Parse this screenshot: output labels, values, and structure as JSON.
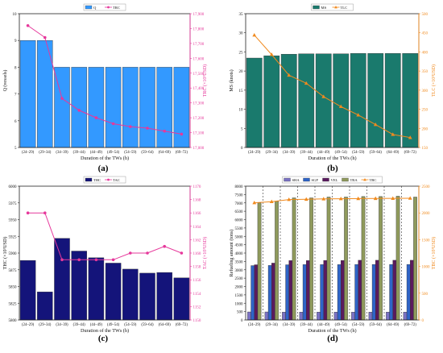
{
  "figure": {
    "x_categories": [
      "(24–29)",
      "(29–34)",
      "(34–39)",
      "(39–44)",
      "(44–49)",
      "(49–54)",
      "(54–59)",
      "(59–64)",
      "(64–69)",
      "(69–72)"
    ],
    "xlabel": "Duration of the TWs (h)"
  },
  "chart_data": [
    {
      "panel": "a",
      "panel_label": "(a)",
      "type": "bar+line",
      "categories": [
        "(24–29)",
        "(29–34)",
        "(34–39)",
        "(39–44)",
        "(44–49)",
        "(49–54)",
        "(54–59)",
        "(59–64)",
        "(64–69)",
        "(69–72)"
      ],
      "xlabel": "Duration of the TWs (h)",
      "ylabel_left": "Q (vessels)",
      "ylabel_right": "TRC (×10³USD)",
      "ylim_left": [
        5,
        10
      ],
      "ylim_right": [
        17000,
        17900
      ],
      "yticks_left": [
        "5",
        "6",
        "7",
        "8",
        "9",
        "10"
      ],
      "yticks_right": [
        "17,000",
        "17,100",
        "17,200",
        "17,300",
        "17,400",
        "17,500",
        "17,600",
        "17,700",
        "17,800",
        "17,900"
      ],
      "series": [
        {
          "name": "Q",
          "kind": "bar",
          "axis": "left",
          "color": "#3399ff",
          "values": [
            9,
            9,
            8,
            8,
            8,
            8,
            8,
            8,
            8,
            8
          ]
        },
        {
          "name": "TRC",
          "kind": "line",
          "axis": "right",
          "color": "#e6389b",
          "marker": "circle",
          "values": [
            17820,
            17740,
            17330,
            17250,
            17200,
            17160,
            17140,
            17130,
            17110,
            17090
          ]
        }
      ],
      "legend_position": "top"
    },
    {
      "panel": "b",
      "panel_label": "(b)",
      "type": "bar+line",
      "categories": [
        "(24–29)",
        "(29–34)",
        "(34–39)",
        "(39–44)",
        "(44–49)",
        "(49–54)",
        "(54–59)",
        "(59–64)",
        "(64–69)",
        "(69–72)"
      ],
      "xlabel": "Duration of the TWs (h)",
      "ylabel_left": "MS (knots)",
      "ylabel_right": "TLC (×10³USD)",
      "ylim_left": [
        0,
        35
      ],
      "ylim_right": [
        150,
        500
      ],
      "yticks_left": [
        "0",
        "5",
        "10",
        "15",
        "20",
        "25",
        "30",
        "35"
      ],
      "yticks_right": [
        "150",
        "200",
        "250",
        "300",
        "350",
        "400",
        "450",
        "500"
      ],
      "series": [
        {
          "name": "MS",
          "kind": "bar",
          "axis": "left",
          "color": "#1a7a6d",
          "values": [
            23.4,
            24.0,
            24.4,
            24.5,
            24.5,
            24.5,
            24.6,
            24.6,
            24.6,
            24.6
          ]
        },
        {
          "name": "TLC",
          "kind": "line",
          "axis": "right",
          "color": "#f08a1e",
          "marker": "triangle",
          "values": [
            444,
            393,
            339,
            318,
            283,
            257,
            235,
            210,
            184,
            176
          ]
        }
      ],
      "legend_position": "top"
    },
    {
      "panel": "c",
      "panel_label": "(c)",
      "type": "bar+line",
      "categories": [
        "(24–29)",
        "(29–34)",
        "(34–39)",
        "(39–44)",
        "(44–49)",
        "(49–54)",
        "(54–59)",
        "(59–64)",
        "(64–69)",
        "(69–72)"
      ],
      "xlabel": "Duration of the TWs (h)",
      "ylabel_left": "THC (×10³USD)",
      "ylabel_right": "TAC (×10³USD)",
      "ylim_left": [
        5800,
        6000
      ],
      "ylim_right": [
        1150,
        1170
      ],
      "yticks_left": [
        "5800",
        "5825",
        "5850",
        "5875",
        "5900",
        "5925",
        "5950",
        "5975",
        "6000"
      ],
      "yticks_right": [
        "1150",
        "1152",
        "1154",
        "1156",
        "1158",
        "1160",
        "1162",
        "1164",
        "1166",
        "1168",
        "1170"
      ],
      "series": [
        {
          "name": "THC",
          "kind": "bar",
          "axis": "left",
          "color": "#14147a",
          "values": [
            5889,
            5842,
            5922,
            5903,
            5893,
            5885,
            5876,
            5870,
            5871,
            5863
          ]
        },
        {
          "name": "TAC",
          "kind": "line",
          "axis": "right",
          "color": "#e6389b",
          "marker": "circle",
          "values": [
            1166,
            1166,
            1159,
            1159,
            1159,
            1159,
            1160,
            1160,
            1161,
            1160
          ]
        }
      ],
      "legend_position": "top"
    },
    {
      "panel": "d",
      "panel_label": "(d)",
      "type": "grouped-bar+line",
      "categories": [
        "(24–29)",
        "(29–34)",
        "(34–39)",
        "(39–44)",
        "(44–49)",
        "(49–54)",
        "(54–59)",
        "(59–64)",
        "(64–69)",
        "(69–72)"
      ],
      "xlabel": "Duration of the TWs (h)",
      "ylabel_left": "Refueling amount (tons)",
      "ylabel_right": "TBC (×10³USD)",
      "ylim_left": [
        0,
        8000
      ],
      "ylim_right": [
        0,
        2500
      ],
      "yticks_left": [
        "0",
        "500",
        "1000",
        "1500",
        "2000",
        "2500",
        "3000",
        "3500",
        "4000",
        "4500",
        "5000",
        "5500",
        "6000",
        "6500",
        "7000",
        "7500",
        "8000"
      ],
      "yticks_right": [
        "0",
        "500",
        "1000",
        "1500",
        "2000",
        "2500"
      ],
      "series": [
        {
          "name": "SHA",
          "kind": "bar",
          "axis": "left",
          "color": "#7a72c4",
          "values": [
            480,
            480,
            470,
            470,
            470,
            470,
            470,
            470,
            470,
            470
          ]
        },
        {
          "name": "SGP",
          "kind": "bar",
          "axis": "left",
          "color": "#2e64c8",
          "values": [
            3250,
            3260,
            3300,
            3310,
            3310,
            3310,
            3320,
            3320,
            3320,
            3320
          ]
        },
        {
          "name": "VEL",
          "kind": "bar",
          "axis": "left",
          "color": "#5a1a5e",
          "values": [
            3300,
            3400,
            3550,
            3550,
            3560,
            3560,
            3570,
            3570,
            3570,
            3570
          ]
        },
        {
          "name": "TRA",
          "kind": "bar",
          "axis": "left",
          "color": "#8f9a5c",
          "values": [
            7000,
            7100,
            7300,
            7300,
            7350,
            7350,
            7380,
            7380,
            7400,
            7350
          ]
        },
        {
          "name": "TBC",
          "kind": "line",
          "axis": "right",
          "color": "#f08a1e",
          "marker": "triangle",
          "values": [
            2190,
            2210,
            2250,
            2255,
            2262,
            2265,
            2268,
            2270,
            2272,
            2275
          ]
        }
      ],
      "separators": "dashed vertical lines between categories",
      "legend_position": "top"
    }
  ]
}
